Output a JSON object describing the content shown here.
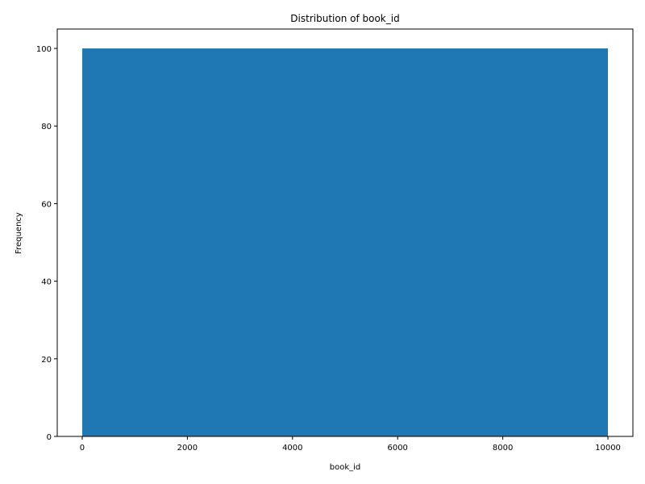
{
  "chart_data": {
    "type": "bar",
    "title": "Distribution of book_id",
    "xlabel": "book_id",
    "ylabel": "Frequency",
    "bins": [
      {
        "x_start": 1,
        "x_end": 10000,
        "count": 100
      }
    ],
    "xlim": [
      -475,
      10475
    ],
    "ylim": [
      0,
      105
    ],
    "xticks": [
      0,
      2000,
      4000,
      6000,
      8000,
      10000
    ],
    "xtick_labels": [
      "0",
      "2000",
      "4000",
      "6000",
      "8000",
      "10000"
    ],
    "yticks": [
      0,
      20,
      40,
      60,
      80,
      100
    ],
    "ytick_labels": [
      "0",
      "20",
      "40",
      "60",
      "80",
      "100"
    ],
    "grid": false,
    "bar_color": "#1f77b4"
  }
}
